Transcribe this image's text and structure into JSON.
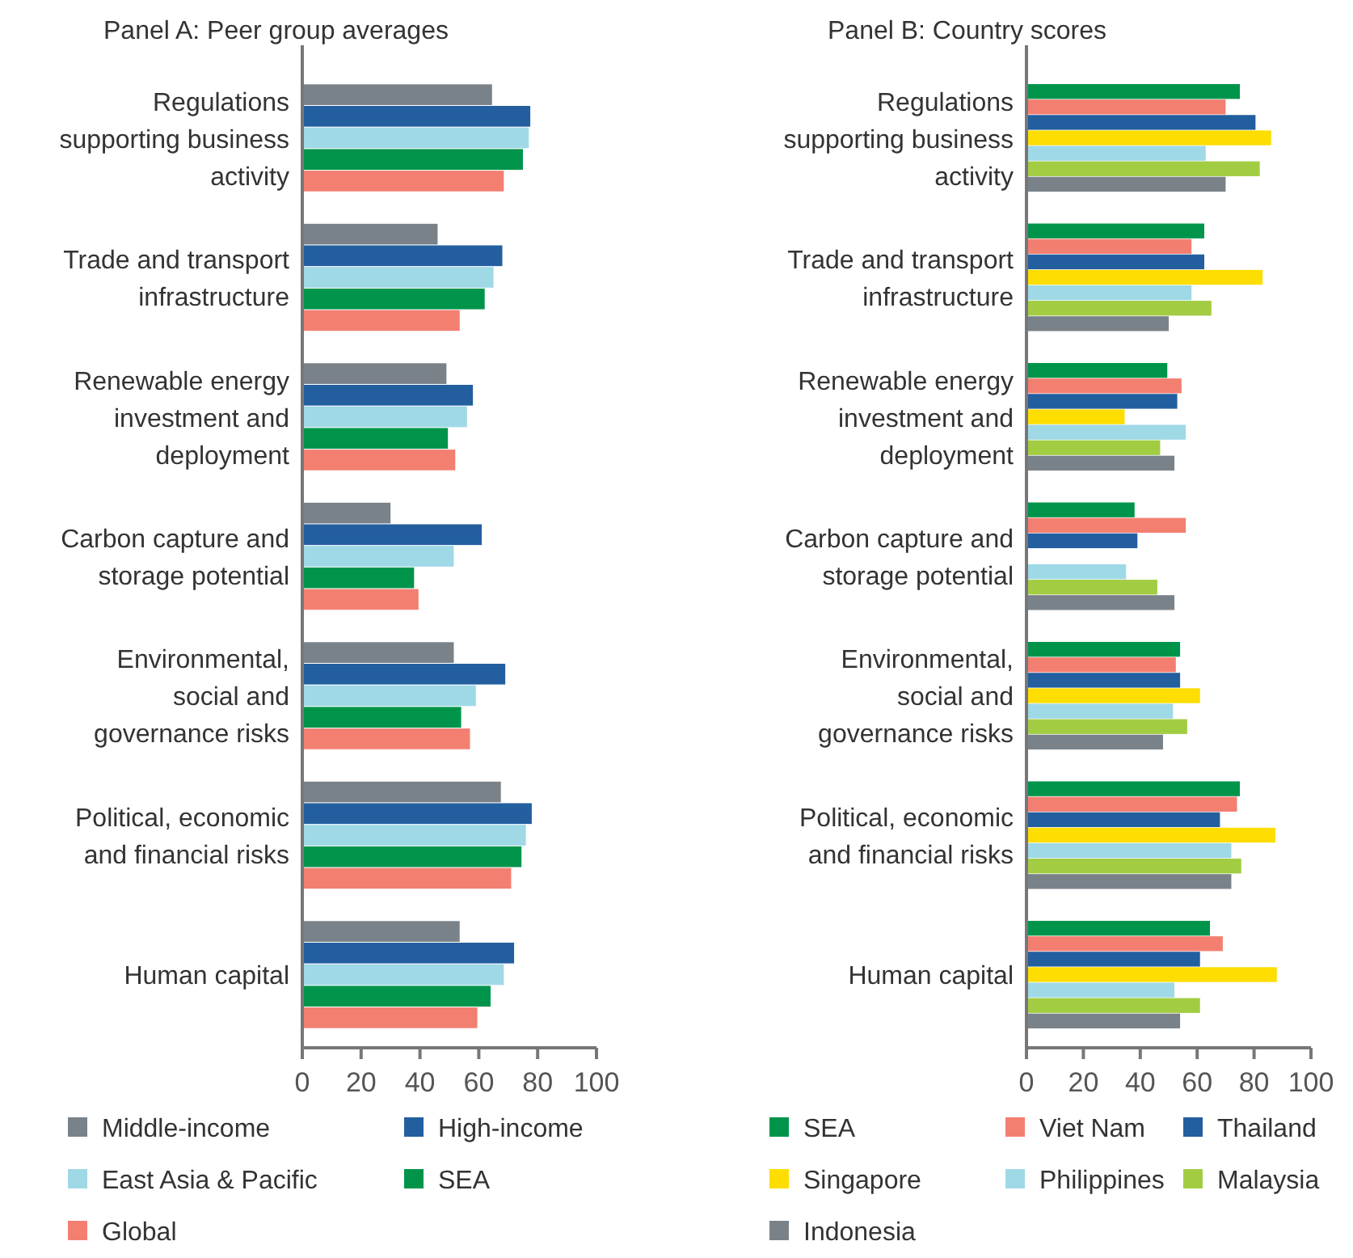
{
  "chart_data": [
    {
      "type": "bar",
      "orientation": "horizontal",
      "title": "Panel A: Peer group averages",
      "categories": [
        "Regulations supporting business activity",
        "Trade and transport infrastructure",
        "Renewable energy investment and deployment",
        "Carbon capture and storage potential",
        "Environmental, social and governance risks",
        "Political, economic and financial risks",
        "Human capital"
      ],
      "series": [
        {
          "name": "Middle-income",
          "color": "#7a8289",
          "values": [
            64.5,
            46,
            49,
            30,
            51.5,
            67.5,
            53.5
          ]
        },
        {
          "name": "High-income",
          "color": "#235f9f",
          "values": [
            77.5,
            68,
            58,
            61,
            69,
            78,
            72
          ]
        },
        {
          "name": "East Asia & Pacific",
          "color": "#9fd9e6",
          "values": [
            77,
            65,
            56,
            51.5,
            59,
            76,
            68.5
          ]
        },
        {
          "name": "SEA",
          "color": "#00944a",
          "values": [
            75,
            62,
            49.5,
            38,
            54,
            74.5,
            64
          ]
        },
        {
          "name": "Global",
          "color": "#f37f71",
          "values": [
            68.5,
            53.5,
            52,
            39.5,
            57,
            71,
            59.5
          ]
        }
      ],
      "xlim": [
        0,
        100
      ],
      "xticks": [
        0,
        20,
        40,
        60,
        80,
        100
      ],
      "grid": false,
      "legend": "bottom"
    },
    {
      "type": "bar",
      "orientation": "horizontal",
      "title": "Panel B: Country scores",
      "categories": [
        "Regulations supporting business activity",
        "Trade and transport infrastructure",
        "Renewable energy investment and deployment",
        "Carbon capture and storage potential",
        "Environmental, social and governance risks",
        "Political, economic and financial risks",
        "Human capital"
      ],
      "series": [
        {
          "name": "SEA",
          "color": "#00944a",
          "values": [
            75,
            62.5,
            49.5,
            38,
            54,
            75,
            64.5
          ]
        },
        {
          "name": "Viet Nam",
          "color": "#f37f71",
          "values": [
            70,
            58,
            54.5,
            56,
            52.5,
            74,
            69
          ]
        },
        {
          "name": "Thailand",
          "color": "#235f9f",
          "values": [
            80.5,
            62.5,
            53,
            39,
            54,
            68,
            61
          ]
        },
        {
          "name": "Singapore",
          "color": "#fedd00",
          "values": [
            86,
            83,
            34.5,
            null,
            61,
            87.5,
            88
          ]
        },
        {
          "name": "Philippines",
          "color": "#9fd9e6",
          "values": [
            63,
            58,
            56,
            35,
            51.5,
            72,
            52
          ]
        },
        {
          "name": "Malaysia",
          "color": "#a2cd43",
          "values": [
            82,
            65,
            47,
            46,
            56.5,
            75.5,
            61
          ]
        },
        {
          "name": "Indonesia",
          "color": "#7a8289",
          "values": [
            70,
            50,
            52,
            52,
            48,
            72,
            54
          ]
        }
      ],
      "xlim": [
        0,
        100
      ],
      "xticks": [
        0,
        20,
        40,
        60,
        80,
        100
      ],
      "grid": false,
      "legend": "bottom"
    }
  ]
}
